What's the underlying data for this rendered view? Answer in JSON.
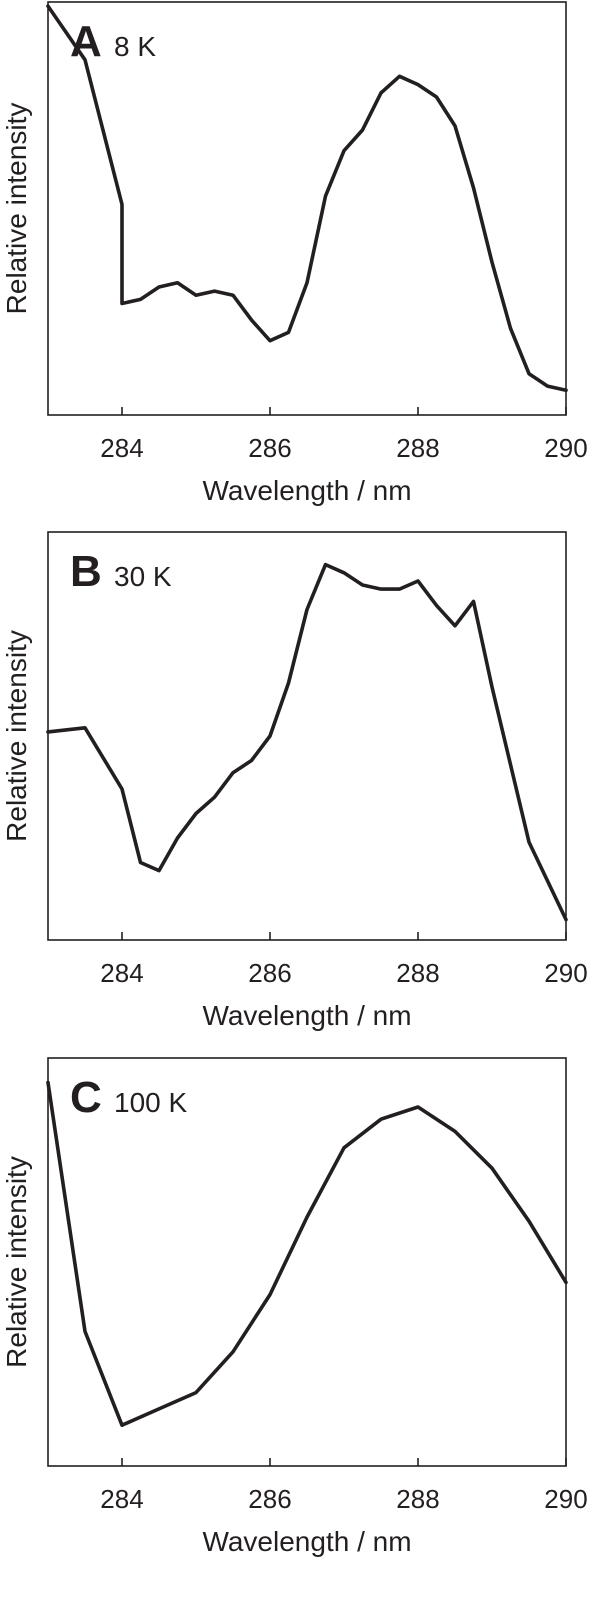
{
  "chart_data": [
    {
      "type": "line",
      "panel_label": "A",
      "title": "8 K",
      "xlabel": "Wavelength / nm",
      "ylabel": "Relative intensity",
      "xlim": [
        283,
        290
      ],
      "ylim": [
        0,
        1
      ],
      "xticks": [
        284,
        286,
        288,
        290
      ],
      "tick_labels": [
        "284",
        "286",
        "288",
        "290"
      ],
      "line_color": "#231f20",
      "grid": false,
      "x": [
        283,
        283.5,
        284,
        284,
        284.25,
        284.5,
        284.75,
        285,
        285.25,
        285.5,
        285.75,
        286,
        286.25,
        286.5,
        286.75,
        287,
        287.25,
        287.5,
        287.75,
        288,
        288.25,
        288.5,
        288.75,
        289,
        289.25,
        289.5,
        289.75,
        290
      ],
      "values": [
        0.99,
        0.86,
        0.51,
        0.27,
        0.28,
        0.31,
        0.32,
        0.29,
        0.3,
        0.29,
        0.23,
        0.18,
        0.2,
        0.32,
        0.53,
        0.64,
        0.69,
        0.78,
        0.82,
        0.8,
        0.77,
        0.7,
        0.55,
        0.37,
        0.21,
        0.1,
        0.07,
        0.06
      ]
    },
    {
      "type": "line",
      "panel_label": "B",
      "title": "30 K",
      "xlabel": "Wavelength / nm",
      "ylabel": "Relative intensity",
      "xlim": [
        283,
        290
      ],
      "ylim": [
        0,
        1
      ],
      "xticks": [
        284,
        286,
        288,
        290
      ],
      "tick_labels": [
        "284",
        "286",
        "288",
        "290"
      ],
      "line_color": "#231f20",
      "grid": false,
      "x": [
        283,
        283.5,
        284,
        284.25,
        284.5,
        284.75,
        285,
        285.25,
        285.5,
        285.75,
        286,
        286.25,
        286.5,
        286.75,
        287,
        287.25,
        287.5,
        287.75,
        288,
        288.25,
        288.5,
        288.75,
        289,
        289.5,
        290
      ],
      "values": [
        0.51,
        0.52,
        0.37,
        0.19,
        0.17,
        0.25,
        0.31,
        0.35,
        0.41,
        0.44,
        0.5,
        0.63,
        0.81,
        0.92,
        0.9,
        0.87,
        0.86,
        0.86,
        0.88,
        0.82,
        0.77,
        0.83,
        0.62,
        0.24,
        0.05
      ]
    },
    {
      "type": "line",
      "panel_label": "C",
      "title": "100 K",
      "xlabel": "Wavelength / nm",
      "ylabel": "Relative intensity",
      "xlim": [
        283,
        290
      ],
      "ylim": [
        0,
        1
      ],
      "xticks": [
        284,
        286,
        288,
        290
      ],
      "tick_labels": [
        "284",
        "286",
        "288",
        "290"
      ],
      "line_color": "#231f20",
      "grid": false,
      "x": [
        283,
        283.5,
        284,
        284.5,
        285,
        285.5,
        286,
        286.5,
        287,
        287.5,
        288,
        288.5,
        289,
        289.5,
        290
      ],
      "values": [
        0.94,
        0.33,
        0.1,
        0.14,
        0.18,
        0.28,
        0.42,
        0.61,
        0.78,
        0.85,
        0.88,
        0.82,
        0.73,
        0.6,
        0.45
      ]
    }
  ]
}
